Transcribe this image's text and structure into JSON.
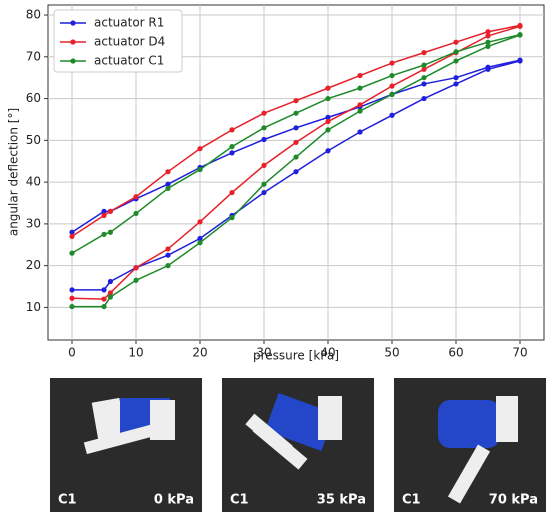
{
  "chart_data": {
    "type": "line",
    "xlabel": "pressure [kPa]",
    "ylabel": "angular deflection [°]",
    "xlim": [
      -3.75,
      73.75
    ],
    "xticks": [
      0,
      10,
      20,
      30,
      40,
      50,
      60,
      70
    ],
    "ylim": [
      2.2,
      82.4
    ],
    "yticks": [
      10,
      20,
      30,
      40,
      50,
      60,
      70,
      80
    ],
    "grid": true,
    "legend": "upper-left",
    "series": [
      {
        "name": "actuator R1",
        "color": "#1f1fdc",
        "x": [
          0,
          5,
          6,
          10,
          15,
          20,
          25,
          30,
          35,
          40,
          45,
          50,
          55,
          60,
          65,
          70,
          70,
          65,
          60,
          55,
          50,
          45,
          40,
          35,
          30,
          25,
          20,
          15,
          10,
          6,
          5,
          0
        ],
        "values": [
          14.2,
          14.2,
          16.2,
          19.5,
          22.5,
          26.5,
          32,
          37.5,
          42.5,
          47.5,
          52,
          56,
          60,
          63.5,
          67,
          69,
          69.2,
          67.5,
          65,
          63.5,
          61,
          58,
          55.5,
          53,
          50.2,
          47,
          43.5,
          39.5,
          36,
          33,
          33,
          28
        ]
      },
      {
        "name": "actuator D4",
        "color": "#e8202a",
        "x": [
          0,
          5,
          6,
          10,
          15,
          20,
          25,
          30,
          35,
          40,
          45,
          50,
          55,
          60,
          65,
          70,
          70,
          65,
          60,
          55,
          50,
          45,
          40,
          35,
          30,
          25,
          20,
          15,
          10,
          6,
          5,
          0
        ],
        "values": [
          12.2,
          12,
          13.5,
          19.5,
          24,
          30.5,
          37.5,
          44,
          49.5,
          54.5,
          58.5,
          63,
          67,
          71,
          75,
          77.3,
          77.5,
          76,
          73.5,
          71,
          68.5,
          65.5,
          62.5,
          59.5,
          56.5,
          52.5,
          48,
          42.5,
          36.5,
          33,
          32,
          27
        ]
      },
      {
        "name": "actuator C1",
        "color": "#1e8a2a",
        "x": [
          0,
          5,
          6,
          10,
          15,
          20,
          25,
          30,
          35,
          40,
          45,
          50,
          55,
          60,
          65,
          70,
          70,
          65,
          60,
          55,
          50,
          45,
          40,
          35,
          30,
          25,
          20,
          15,
          10,
          6,
          5,
          0
        ],
        "values": [
          10.2,
          10.2,
          12.5,
          16.5,
          20,
          25.5,
          31.5,
          39.5,
          46,
          52.5,
          57,
          61,
          65,
          69,
          72.5,
          75.2,
          75.3,
          73.5,
          71.2,
          68,
          65.5,
          62.5,
          60,
          56.5,
          53,
          48.5,
          43,
          38.5,
          32.5,
          28,
          27.5,
          23
        ]
      }
    ]
  },
  "panels": [
    {
      "label": "C1",
      "pressure": "0 kPa"
    },
    {
      "label": "C1",
      "pressure": "35 kPa"
    },
    {
      "label": "C1",
      "pressure": "70 kPa"
    }
  ]
}
